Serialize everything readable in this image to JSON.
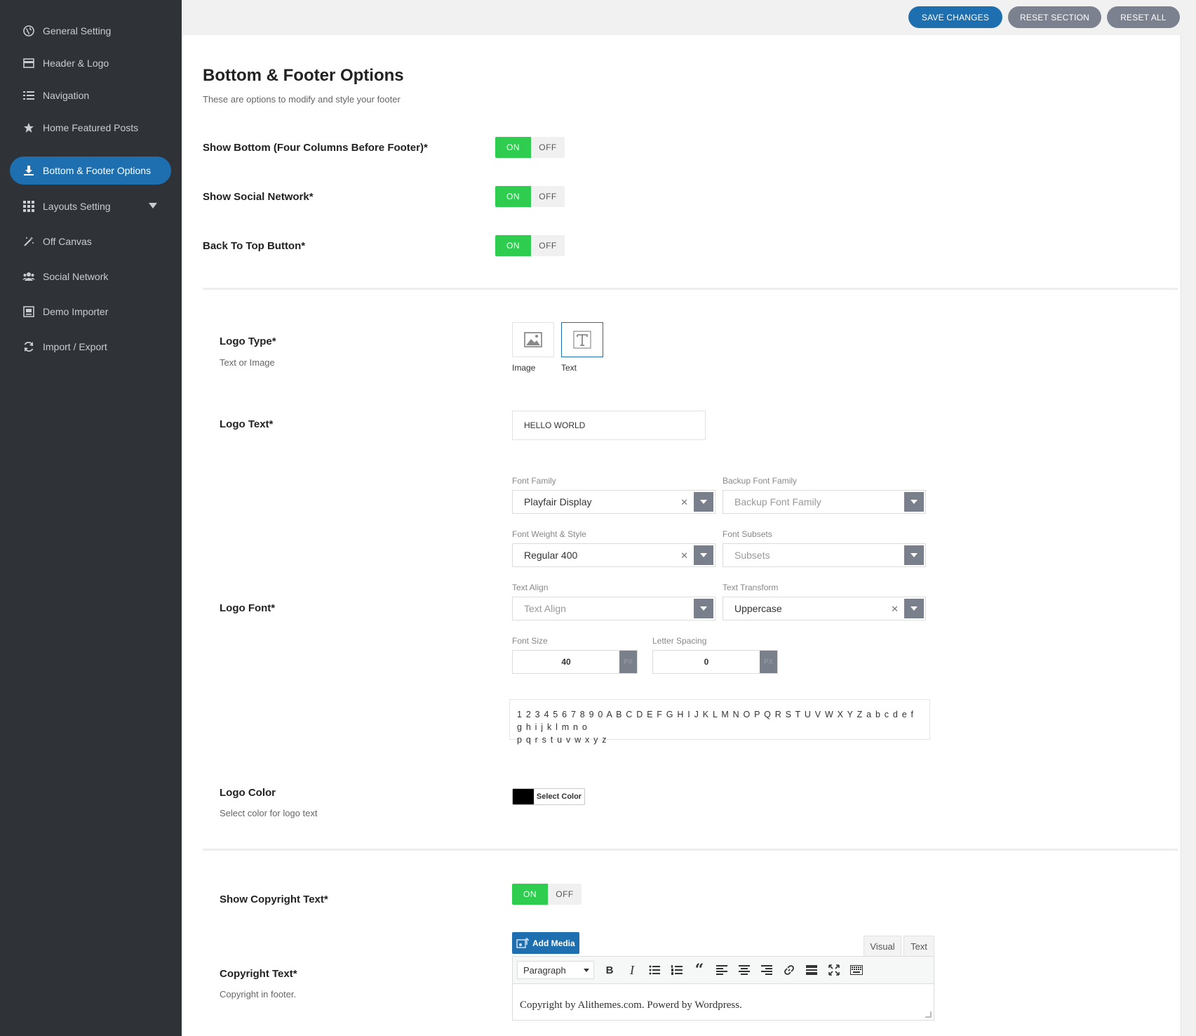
{
  "sidebar": {
    "items": [
      {
        "label": "General Setting",
        "icon": "globe-icon"
      },
      {
        "label": "Header & Logo",
        "icon": "header-icon"
      },
      {
        "label": "Navigation",
        "icon": "list-icon"
      },
      {
        "label": "Home Featured Posts",
        "icon": "star-icon"
      },
      {
        "label": "Bottom & Footer Options",
        "icon": "download-icon",
        "active": true
      },
      {
        "label": "Layouts Setting",
        "icon": "grid-icon"
      },
      {
        "label": "Off Canvas",
        "icon": "magic-wand-icon"
      },
      {
        "label": "Social Network",
        "icon": "users-icon"
      },
      {
        "label": "Demo Importer",
        "icon": "monitor-icon"
      },
      {
        "label": "Import / Export",
        "icon": "refresh-icon"
      }
    ]
  },
  "toolbar": {
    "save_label": "SAVE CHANGES",
    "reset_section_label": "RESET SECTION",
    "reset_all_label": "RESET ALL"
  },
  "section": {
    "title": "Bottom & Footer Options",
    "subtitle": "These are options to modify and style your footer"
  },
  "toggle_labels": {
    "on": "ON",
    "off": "OFF"
  },
  "options": {
    "show_bottom": {
      "label": "Show Bottom (Four Columns Before Footer)*",
      "value": "ON"
    },
    "show_social": {
      "label": "Show Social Network*",
      "value": "ON"
    },
    "back_to_top": {
      "label": "Back To Top Button*",
      "value": "ON"
    },
    "logo_type": {
      "label": "Logo Type*",
      "desc": "Text or Image",
      "choices": [
        "Image",
        "Text"
      ],
      "selected": "Text"
    },
    "logo_text": {
      "label": "Logo Text*",
      "value": "HELLO WORLD"
    },
    "logo_font": {
      "label": "Logo Font*",
      "font_family": {
        "label": "Font Family",
        "value": "Playfair Display"
      },
      "backup_font_family": {
        "label": "Backup Font Family",
        "placeholder": "Backup Font Family"
      },
      "font_weight": {
        "label": "Font Weight & Style",
        "value": "Regular 400"
      },
      "font_subsets": {
        "label": "Font Subsets",
        "placeholder": "Subsets"
      },
      "text_align": {
        "label": "Text Align",
        "placeholder": "Text Align"
      },
      "text_transform": {
        "label": "Text Transform",
        "value": "Uppercase"
      },
      "font_size": {
        "label": "Font Size",
        "value": "40",
        "unit": "PX"
      },
      "letter_spacing": {
        "label": "Letter Spacing",
        "value": "0",
        "unit": "PX"
      },
      "preview_line1": "1 2 3 4 5 6 7 8 9 0 A B C D E F G H I J K L M N O P Q R S T U V W X Y Z a b c d e f g h i j k l m n o",
      "preview_line2": "p q r s t u v w x y z"
    },
    "logo_color": {
      "label": "Logo Color",
      "desc": "Select color for logo text",
      "button_label": "Select Color",
      "value": "#000000"
    },
    "show_copyright": {
      "label": "Show Copyright Text*",
      "value": "ON"
    },
    "copyright_text": {
      "label": "Copyright Text*",
      "desc": "Copyright in footer.",
      "add_media_label": "Add Media",
      "tab_visual": "Visual",
      "tab_text": "Text",
      "format_select": "Paragraph",
      "content": "Copyright by Alithemes.com. Powerd by Wordpress."
    }
  },
  "colors": {
    "sidebar_bg": "#2f3338",
    "accent": "#1e6fb0",
    "toggle_on": "#2ecc4f",
    "reset_button": "#7c8190"
  }
}
